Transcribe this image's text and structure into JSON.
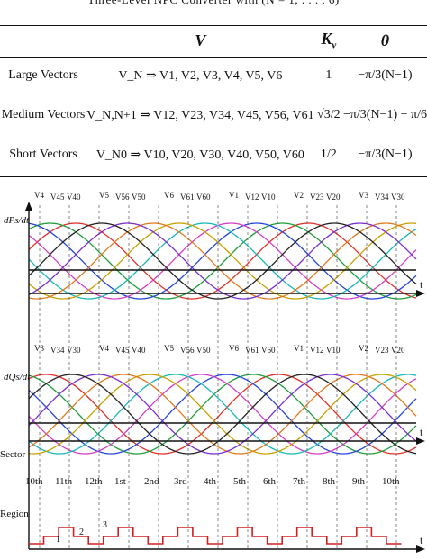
{
  "caption": "Three-Level NPC Converter with (N = 1, . . . , 6)",
  "table": {
    "headers": [
      "",
      "V",
      "K",
      "θ"
    ],
    "kv_subscript": "v",
    "rows": [
      {
        "label": "Large Vectors",
        "vectors": "V_N ⇒ V1, V2, V3, V4, V5, V6",
        "kv": "1",
        "theta": "−π/3(N−1)"
      },
      {
        "label": "Medium Vectors",
        "vectors": "V_N,N+1 ⇒ V12, V23, V34, V45, V56, V61",
        "kv": "√3/2",
        "theta": "−π/3(N−1) − π/6"
      },
      {
        "label": "Short Vectors",
        "vectors": "V_N0 ⇒ V10, V20, V30, V40, V50, V60",
        "kv": "1/2",
        "theta": "−π/3(N−1)"
      }
    ]
  },
  "figure": {
    "top_axis_label": "dPs/dt",
    "mid_axis_label": "dQs/dt",
    "time_label": "t",
    "sector_label": "Sector",
    "region_label": "Region",
    "sectors": [
      "10th",
      "11th",
      "12th",
      "1st",
      "2nd",
      "3rd",
      "4th",
      "5th",
      "6th",
      "7th",
      "8th",
      "9th",
      "10th"
    ],
    "regions": [
      "1",
      "2",
      "3"
    ],
    "p_vector_labels": [
      "V4",
      "V45",
      "V40",
      "V5",
      "V56",
      "V50",
      "V6",
      "V61",
      "V60",
      "V1",
      "V12",
      "V10",
      "V2",
      "V23",
      "V20",
      "V3",
      "V34",
      "V30"
    ],
    "q_vector_labels": [
      "V3",
      "V34",
      "V30",
      "V4",
      "V45",
      "V40",
      "V5",
      "V56",
      "V50",
      "V6",
      "V61",
      "V60",
      "V1",
      "V12",
      "V10",
      "V2",
      "V23",
      "V20"
    ],
    "curve_colors": [
      "#e0312a",
      "#1f9e3c",
      "#2545d8",
      "#d43fc8",
      "#1ab8b8",
      "#c8a000",
      "#e07a1f",
      "#7a2fd0",
      "#222222"
    ]
  }
}
